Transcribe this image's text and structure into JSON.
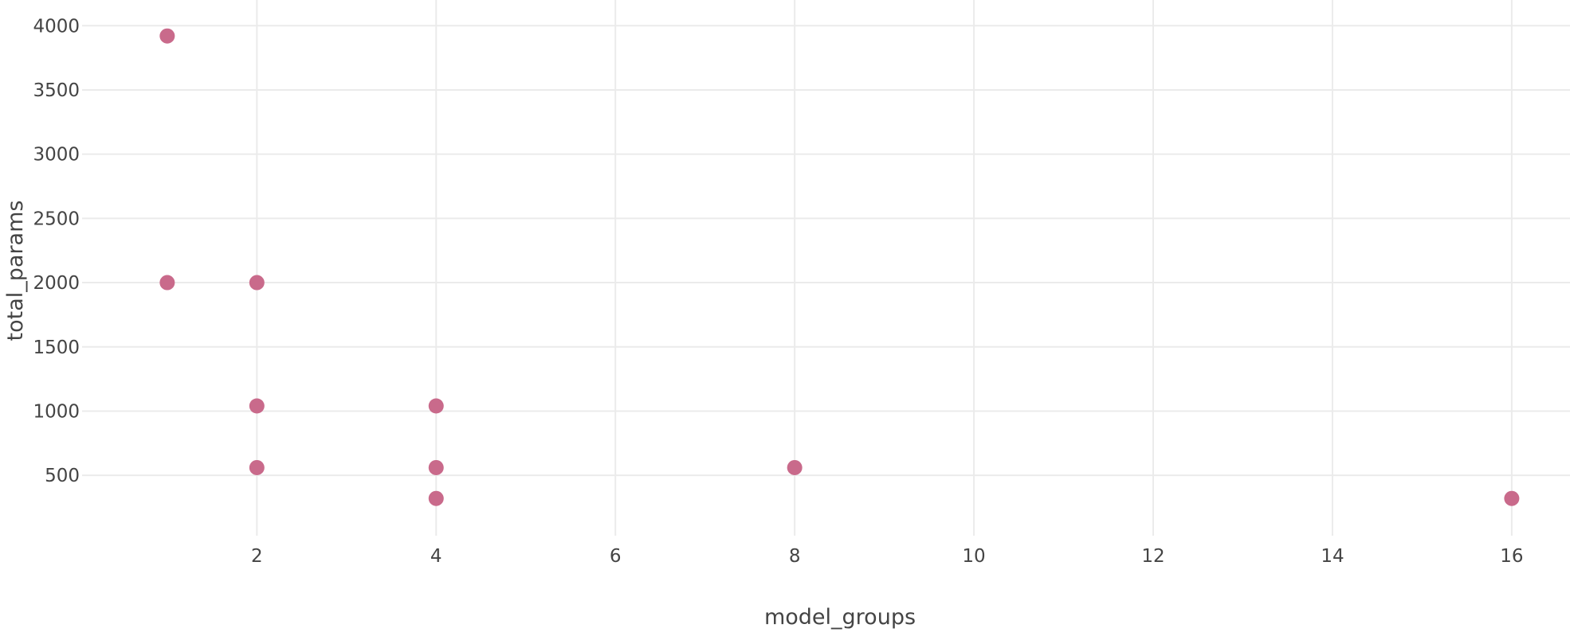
{
  "chart_data": {
    "type": "scatter",
    "xlabel": "model_groups",
    "ylabel": "total_params",
    "xlim": [
      0.05,
      16.65
    ],
    "ylim": [
      30,
      4200
    ],
    "x_ticks": [
      2,
      4,
      6,
      8,
      10,
      12,
      14,
      16
    ],
    "y_ticks": [
      500,
      1000,
      1500,
      2000,
      2500,
      3000,
      3500,
      4000
    ],
    "grid": true,
    "marker_color": "#c96a8b",
    "points": [
      {
        "x": 1,
        "y": 3920
      },
      {
        "x": 1,
        "y": 2000
      },
      {
        "x": 2,
        "y": 2000
      },
      {
        "x": 2,
        "y": 1040
      },
      {
        "x": 2,
        "y": 560
      },
      {
        "x": 4,
        "y": 1040
      },
      {
        "x": 4,
        "y": 560
      },
      {
        "x": 4,
        "y": 320
      },
      {
        "x": 8,
        "y": 560
      },
      {
        "x": 16,
        "y": 320
      }
    ]
  }
}
